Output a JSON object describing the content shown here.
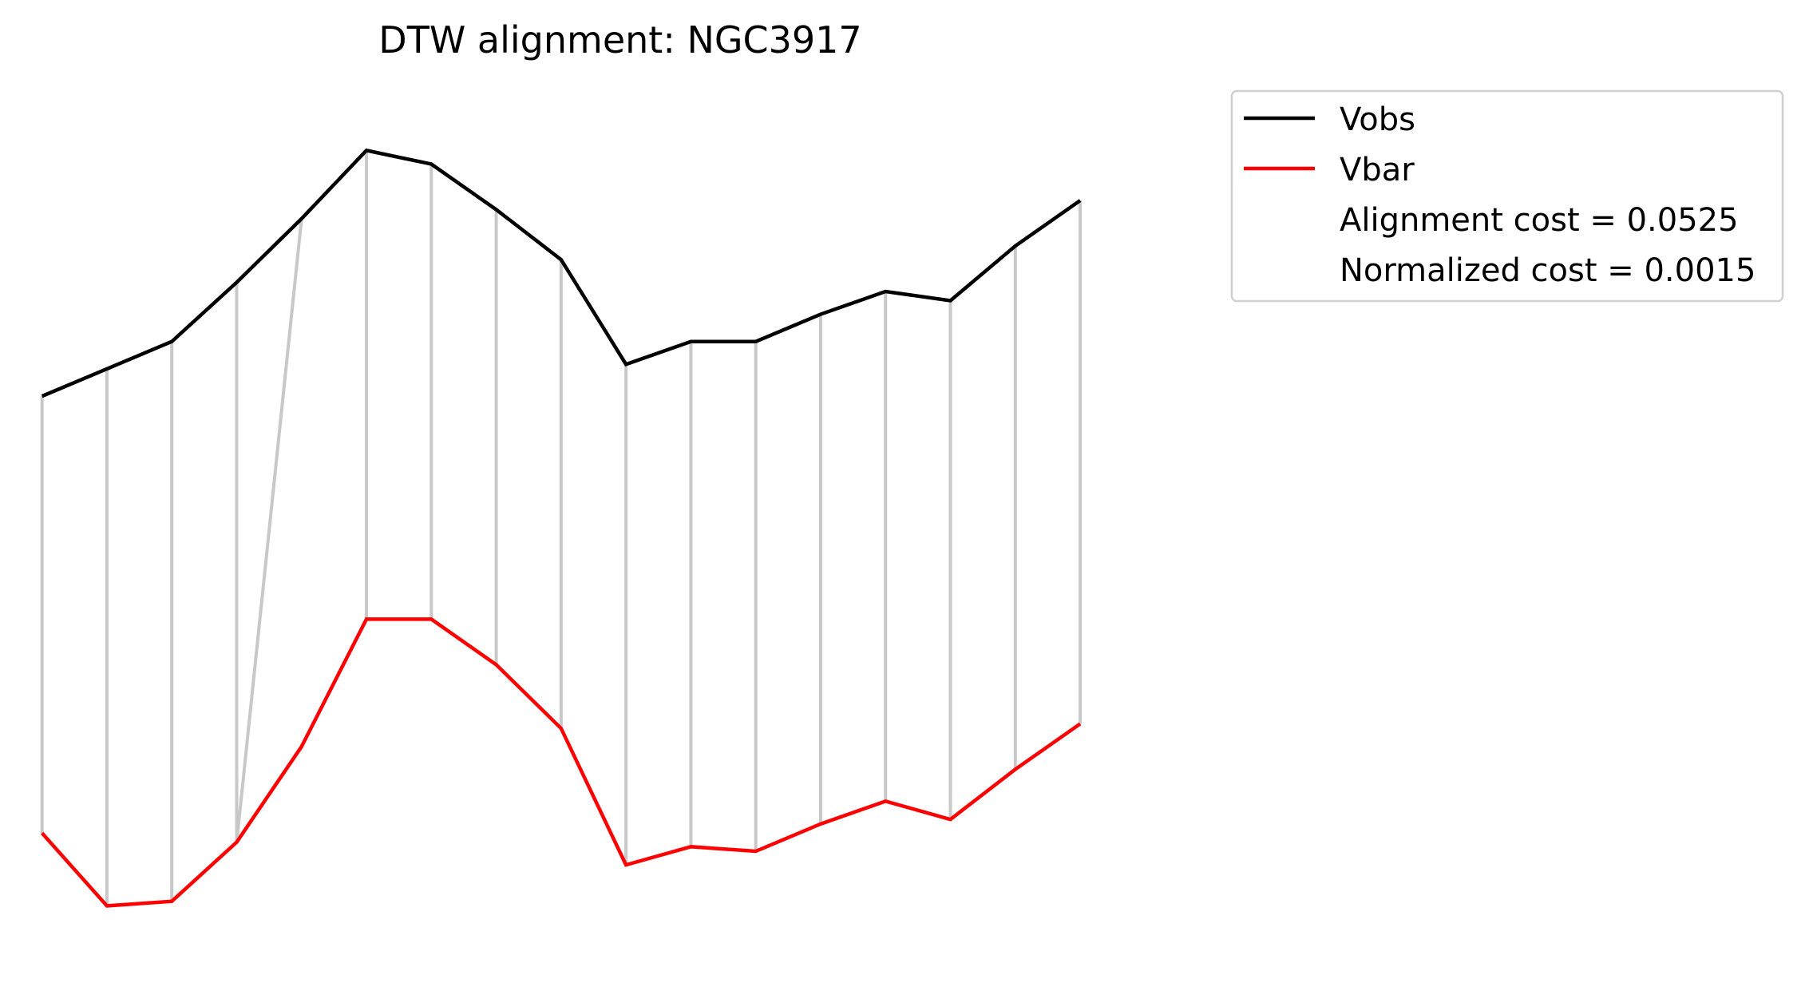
{
  "chart_data": {
    "type": "line",
    "title": "DTW alignment: NGC3917",
    "xlabel": "",
    "ylabel": "",
    "axes_visible": false,
    "grid": false,
    "legend_placement": "outside top-right",
    "colors": {
      "Vobs": "#000000",
      "Vbar": "#ff0000",
      "alignment": "#c8c8c8"
    },
    "x": [
      0,
      1,
      2,
      3,
      4,
      5,
      6,
      7,
      8,
      9,
      10,
      11,
      12,
      13,
      14,
      15,
      16
    ],
    "series": [
      {
        "name": "Vobs",
        "values": [
          0.69,
          0.75,
          0.81,
          0.94,
          1.08,
          1.23,
          1.2,
          1.1,
          0.99,
          0.76,
          0.81,
          0.81,
          0.87,
          0.92,
          0.9,
          1.02,
          1.12
        ]
      },
      {
        "name": "Vbar",
        "values": [
          -0.27,
          -0.43,
          -0.42,
          -0.29,
          -0.08,
          0.2,
          0.2,
          0.1,
          -0.04,
          -0.34,
          -0.3,
          -0.31,
          -0.25,
          -0.2,
          -0.24,
          -0.13,
          -0.03
        ]
      }
    ],
    "alignment_path": [
      [
        0,
        0
      ],
      [
        1,
        1
      ],
      [
        2,
        2
      ],
      [
        3,
        3
      ],
      [
        4,
        3
      ],
      [
        5,
        5
      ],
      [
        6,
        6
      ],
      [
        7,
        7
      ],
      [
        8,
        8
      ],
      [
        9,
        9
      ],
      [
        10,
        10
      ],
      [
        11,
        11
      ],
      [
        12,
        12
      ],
      [
        13,
        13
      ],
      [
        14,
        14
      ],
      [
        15,
        15
      ],
      [
        16,
        16
      ]
    ],
    "ylim": [
      -0.51,
      1.35
    ],
    "xlim": [
      -0.5,
      18.3
    ],
    "legend": {
      "entries": [
        "Vobs",
        "Vbar"
      ],
      "texts": [
        "Alignment cost = 0.0525",
        "Normalized cost = 0.0015"
      ]
    }
  }
}
